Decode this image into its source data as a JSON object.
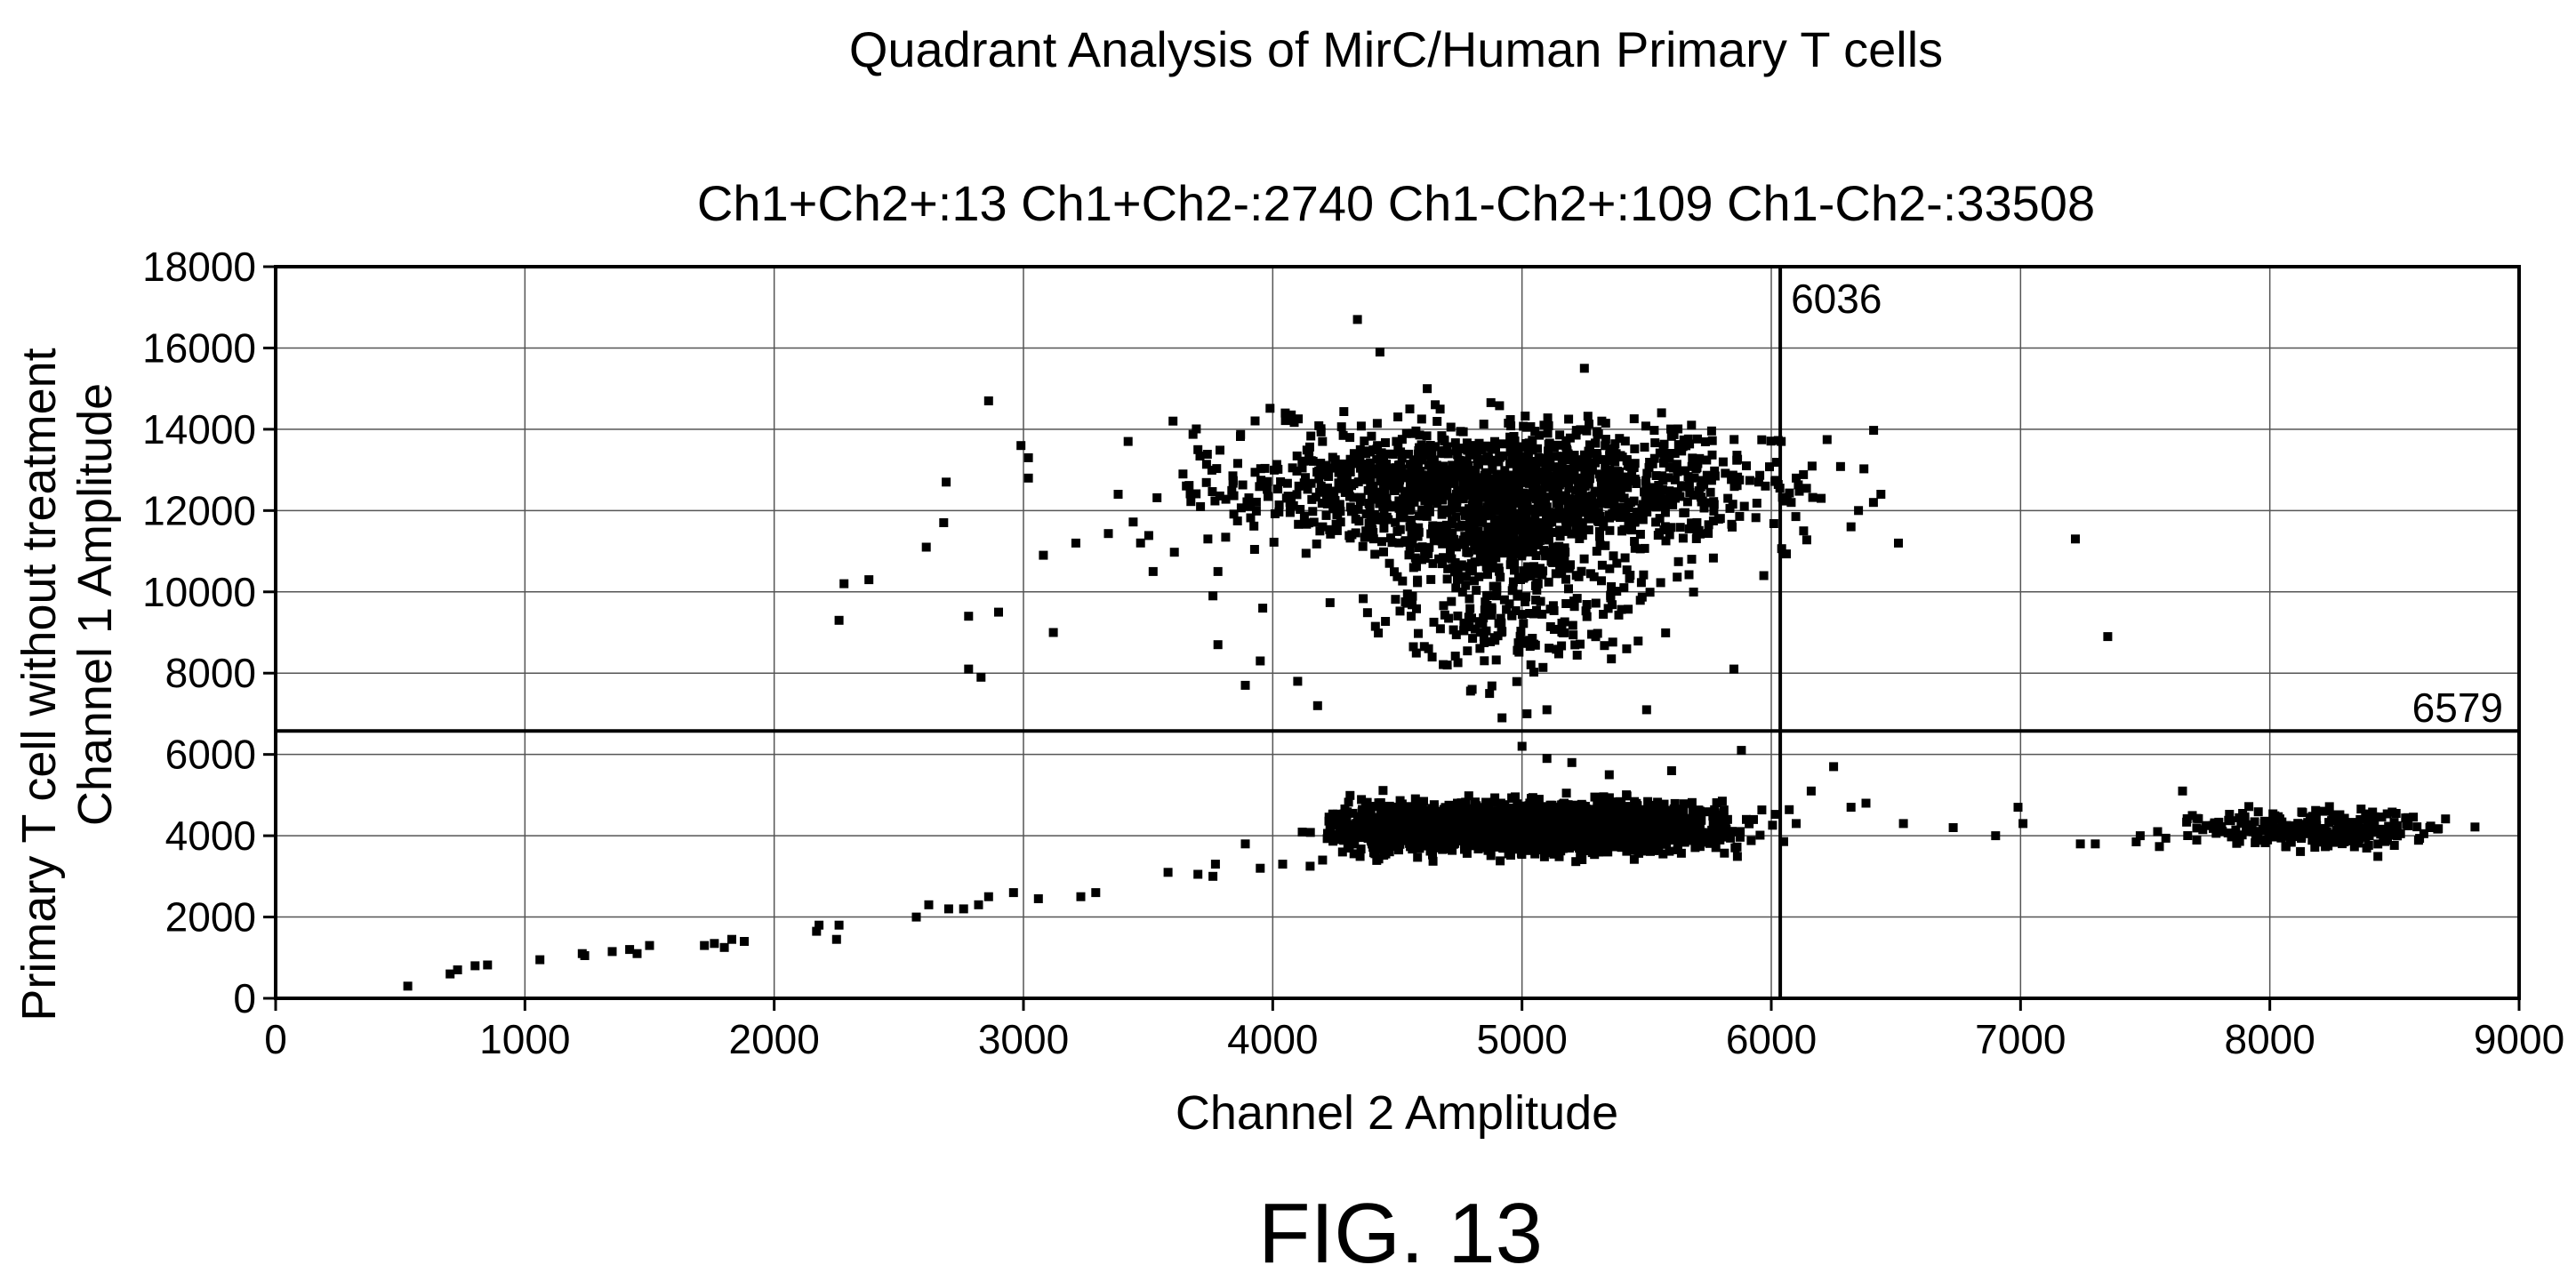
{
  "chart_data": {
    "type": "scatter",
    "title": "Quadrant Analysis of MirC/Human Primary T cells",
    "subtitle": "Ch1+Ch2+:13 Ch1+Ch2-:2740 Ch1-Ch2+:109 Ch1-Ch2-:33508",
    "xlabel": "Channel 2 Amplitude",
    "ylabel_outer": "Primary T cell without treatment",
    "ylabel": "Channel 1 Amplitude",
    "xlim": [
      0,
      9000
    ],
    "ylim": [
      0,
      18000
    ],
    "x_ticks": [
      0,
      1000,
      2000,
      3000,
      4000,
      5000,
      6000,
      7000,
      8000,
      9000
    ],
    "y_ticks": [
      0,
      2000,
      4000,
      6000,
      8000,
      10000,
      12000,
      14000,
      16000,
      18000
    ],
    "x_tick_labels": [
      "0",
      "1000",
      "2000",
      "3000",
      "4000",
      "5000",
      "6000",
      "7000",
      "8000",
      "9000"
    ],
    "y_tick_labels": [
      "0",
      "2000",
      "4000",
      "6000",
      "8000",
      "10000",
      "12000",
      "14000",
      "16000",
      "18000"
    ],
    "grid": true,
    "thresholds": {
      "x": 6036,
      "y": 6579,
      "x_label": "6036",
      "y_label": "6579"
    },
    "quadrant_counts": {
      "ch1_pos_ch2_pos": 13,
      "ch1_pos_ch2_neg": 2740,
      "ch1_neg_ch2_pos": 109,
      "ch1_neg_ch2_neg": 33508
    },
    "points": [
      [
        530,
        300
      ],
      [
        700,
        600
      ],
      [
        730,
        700
      ],
      [
        800,
        800
      ],
      [
        850,
        820
      ],
      [
        1060,
        950
      ],
      [
        1230,
        1100
      ],
      [
        1240,
        1050
      ],
      [
        1350,
        1150
      ],
      [
        1420,
        1200
      ],
      [
        1450,
        1100
      ],
      [
        1500,
        1300
      ],
      [
        1720,
        1300
      ],
      [
        1760,
        1350
      ],
      [
        1800,
        1250
      ],
      [
        1830,
        1450
      ],
      [
        1880,
        1400
      ],
      [
        2170,
        1650
      ],
      [
        2180,
        1800
      ],
      [
        2250,
        1450
      ],
      [
        2260,
        1800
      ],
      [
        2570,
        2000
      ],
      [
        2620,
        2300
      ],
      [
        2700,
        2200
      ],
      [
        2760,
        2200
      ],
      [
        2820,
        2300
      ],
      [
        2860,
        2500
      ],
      [
        2960,
        2600
      ],
      [
        3060,
        2450
      ],
      [
        3230,
        2500
      ],
      [
        3290,
        2600
      ],
      [
        3580,
        3100
      ],
      [
        3700,
        3050
      ],
      [
        3760,
        3000
      ],
      [
        3770,
        3300
      ],
      [
        3890,
        3800
      ],
      [
        3950,
        3200
      ],
      [
        4040,
        3300
      ],
      [
        4150,
        3250
      ],
      [
        4200,
        3400
      ],
      [
        4280,
        3600
      ],
      [
        2260,
        9300
      ],
      [
        2280,
        10200
      ],
      [
        2380,
        10300
      ],
      [
        2610,
        11100
      ],
      [
        2680,
        11700
      ],
      [
        2690,
        12700
      ],
      [
        2780,
        9400
      ],
      [
        2780,
        8100
      ],
      [
        2830,
        7900
      ],
      [
        2860,
        14700
      ],
      [
        2900,
        9500
      ],
      [
        2990,
        13600
      ],
      [
        3020,
        12800
      ],
      [
        3020,
        13300
      ],
      [
        3080,
        10900
      ],
      [
        3120,
        9000
      ],
      [
        3210,
        11200
      ],
      [
        3380,
        12400
      ],
      [
        3420,
        13700
      ],
      [
        3520,
        10500
      ],
      [
        3600,
        14200
      ],
      [
        3640,
        12900
      ],
      [
        3700,
        13500
      ],
      [
        3740,
        11300
      ],
      [
        3760,
        9900
      ],
      [
        3780,
        10500
      ],
      [
        3780,
        8700
      ],
      [
        3890,
        7700
      ],
      [
        3950,
        8300
      ],
      [
        3960,
        9600
      ],
      [
        4050,
        14400
      ],
      [
        4100,
        7800
      ],
      [
        4180,
        7200
      ],
      [
        4200,
        11600
      ],
      [
        4340,
        16700
      ],
      [
        4430,
        15900
      ],
      [
        4550,
        14500
      ],
      [
        4620,
        15000
      ],
      [
        4700,
        8200
      ],
      [
        4800,
        7600
      ],
      [
        4870,
        7500
      ],
      [
        4920,
        6900
      ],
      [
        5020,
        7000
      ],
      [
        5100,
        7100
      ],
      [
        5250,
        15500
      ],
      [
        5320,
        14200
      ],
      [
        5420,
        8600
      ],
      [
        5500,
        7100
      ],
      [
        5680,
        14100
      ],
      [
        5850,
        8100
      ],
      [
        5900,
        13100
      ],
      [
        5950,
        12700
      ],
      [
        5970,
        10400
      ],
      [
        5880,
        6100
      ],
      [
        5000,
        6200
      ],
      [
        5100,
        5900
      ],
      [
        5200,
        5800
      ],
      [
        5350,
        5500
      ],
      [
        5600,
        5600
      ],
      [
        5900,
        4400
      ],
      [
        6040,
        13700
      ],
      [
        6080,
        12200
      ],
      [
        6100,
        12800
      ],
      [
        6130,
        11500
      ],
      [
        6200,
        12300
      ],
      [
        6320,
        11600
      ],
      [
        6350,
        12000
      ],
      [
        6410,
        12200
      ],
      [
        6440,
        12400
      ],
      [
        6510,
        11200
      ],
      [
        7220,
        11300
      ],
      [
        7350,
        8900
      ],
      [
        6100,
        4300
      ],
      [
        6160,
        5100
      ],
      [
        6250,
        5700
      ],
      [
        6320,
        4700
      ],
      [
        6380,
        4800
      ],
      [
        6530,
        4300
      ],
      [
        6730,
        4200
      ],
      [
        6900,
        4000
      ],
      [
        6990,
        4700
      ],
      [
        7010,
        4300
      ],
      [
        7240,
        3800
      ],
      [
        7300,
        3800
      ],
      [
        7480,
        4000
      ],
      [
        7550,
        4100
      ],
      [
        7650,
        5100
      ]
    ],
    "dense_clusters": [
      {
        "x_range": [
          3800,
          6000
        ],
        "y_range": [
          11000,
          14200
        ],
        "count": 1400
      },
      {
        "x_range": [
          4400,
          5600
        ],
        "y_range": [
          8000,
          11500
        ],
        "count": 250
      },
      {
        "x_range": [
          4500,
          5300
        ],
        "y_range": [
          10300,
          12000
        ],
        "count": 200
      },
      {
        "x_range": [
          4400,
          5800
        ],
        "y_range": [
          3600,
          4800
        ],
        "count": 2600
      },
      {
        "x_range": [
          4200,
          4600
        ],
        "y_range": [
          3500,
          4900
        ],
        "count": 200
      },
      {
        "x_range": [
          7650,
          8650
        ],
        "y_range": [
          3700,
          4600
        ],
        "count": 260
      }
    ]
  },
  "caption": "FIG. 13"
}
